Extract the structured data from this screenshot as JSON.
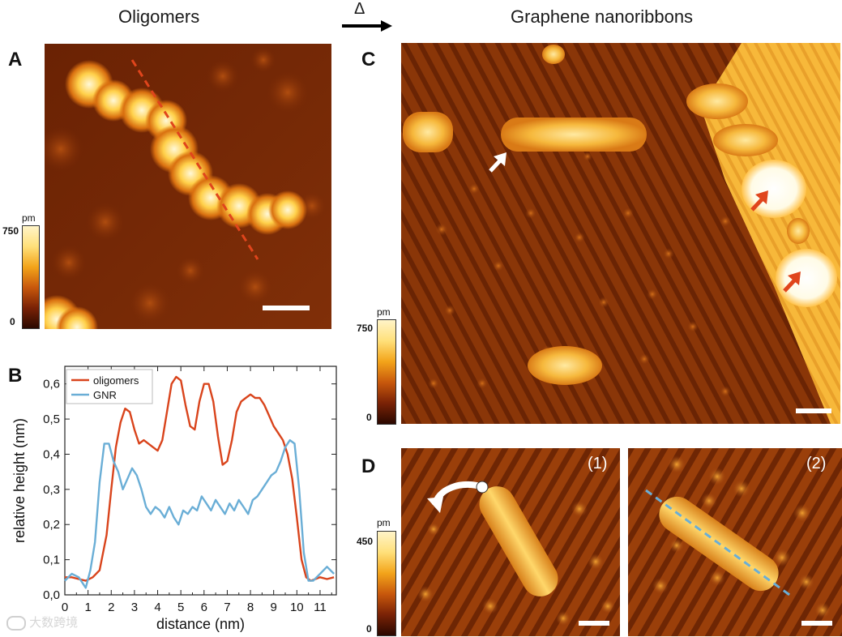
{
  "titles": {
    "left": "Oligomers",
    "arrow": "Δ",
    "right": "Graphene nanoribbons"
  },
  "panels": {
    "a": "A",
    "b": "B",
    "c": "C",
    "d": "D"
  },
  "colorbars": {
    "a": {
      "unit": "pm",
      "max": "750",
      "min": "0"
    },
    "c": {
      "unit": "pm",
      "max": "750",
      "min": "0"
    },
    "d": {
      "unit": "pm",
      "max": "450",
      "min": "0"
    }
  },
  "frames": {
    "d1": "(1)",
    "d2": "(2)"
  },
  "watermark": "大数跨境",
  "colors": {
    "oligomers": "#d9441c",
    "gnr": "#6aaed6",
    "stm_dark": "#5a1a02",
    "stm_mid": "#b84a0c",
    "stm_bright": "#ffd84a"
  },
  "chart_data": {
    "type": "line",
    "xlabel": "distance (nm)",
    "ylabel": "relative height (nm)",
    "xlim": [
      0,
      11.7
    ],
    "ylim": [
      0,
      0.65
    ],
    "x_ticks": [
      "0",
      "1",
      "2",
      "3",
      "4",
      "5",
      "6",
      "7",
      "8",
      "9",
      "10",
      "11"
    ],
    "y_ticks": [
      "0,0",
      "0,1",
      "0,2",
      "0,3",
      "0,4",
      "0,5",
      "0,6"
    ],
    "legend_position": "top-left",
    "series": [
      {
        "name": "oligomers",
        "color": "#d9441c",
        "x": [
          0,
          0.3,
          0.6,
          0.9,
          1.2,
          1.5,
          1.8,
          2.0,
          2.2,
          2.4,
          2.6,
          2.8,
          3.0,
          3.2,
          3.4,
          3.6,
          3.8,
          4.0,
          4.2,
          4.4,
          4.6,
          4.8,
          5.0,
          5.2,
          5.4,
          5.6,
          5.8,
          6.0,
          6.2,
          6.4,
          6.6,
          6.8,
          7.0,
          7.2,
          7.4,
          7.6,
          7.8,
          8.0,
          8.2,
          8.4,
          8.6,
          8.8,
          9.0,
          9.2,
          9.4,
          9.6,
          9.8,
          10.0,
          10.2,
          10.4,
          10.6,
          10.8,
          11.0,
          11.3,
          11.6
        ],
        "y": [
          0.05,
          0.05,
          0.045,
          0.04,
          0.05,
          0.07,
          0.17,
          0.3,
          0.42,
          0.49,
          0.53,
          0.52,
          0.47,
          0.43,
          0.44,
          0.43,
          0.42,
          0.41,
          0.44,
          0.52,
          0.6,
          0.62,
          0.61,
          0.54,
          0.48,
          0.47,
          0.55,
          0.6,
          0.6,
          0.55,
          0.45,
          0.37,
          0.38,
          0.44,
          0.52,
          0.55,
          0.56,
          0.57,
          0.56,
          0.56,
          0.54,
          0.51,
          0.48,
          0.46,
          0.44,
          0.4,
          0.33,
          0.22,
          0.1,
          0.05,
          0.04,
          0.045,
          0.05,
          0.045,
          0.05
        ]
      },
      {
        "name": "GNR",
        "color": "#6aaed6",
        "x": [
          0,
          0.3,
          0.6,
          0.9,
          1.1,
          1.3,
          1.5,
          1.7,
          1.9,
          2.1,
          2.3,
          2.5,
          2.7,
          2.9,
          3.1,
          3.3,
          3.5,
          3.7,
          3.9,
          4.1,
          4.3,
          4.5,
          4.7,
          4.9,
          5.1,
          5.3,
          5.5,
          5.7,
          5.9,
          6.1,
          6.3,
          6.5,
          6.7,
          6.9,
          7.1,
          7.3,
          7.5,
          7.7,
          7.9,
          8.1,
          8.3,
          8.5,
          8.7,
          8.9,
          9.1,
          9.3,
          9.5,
          9.7,
          9.9,
          10.1,
          10.3,
          10.5,
          10.7,
          11.0,
          11.3,
          11.6
        ],
        "y": [
          0.04,
          0.06,
          0.05,
          0.02,
          0.07,
          0.15,
          0.32,
          0.43,
          0.43,
          0.38,
          0.35,
          0.3,
          0.33,
          0.36,
          0.34,
          0.3,
          0.25,
          0.23,
          0.25,
          0.24,
          0.22,
          0.25,
          0.22,
          0.2,
          0.24,
          0.23,
          0.25,
          0.24,
          0.28,
          0.26,
          0.24,
          0.27,
          0.25,
          0.23,
          0.26,
          0.24,
          0.27,
          0.25,
          0.23,
          0.27,
          0.28,
          0.3,
          0.32,
          0.34,
          0.35,
          0.38,
          0.42,
          0.44,
          0.43,
          0.3,
          0.12,
          0.04,
          0.04,
          0.06,
          0.08,
          0.06
        ]
      }
    ]
  }
}
